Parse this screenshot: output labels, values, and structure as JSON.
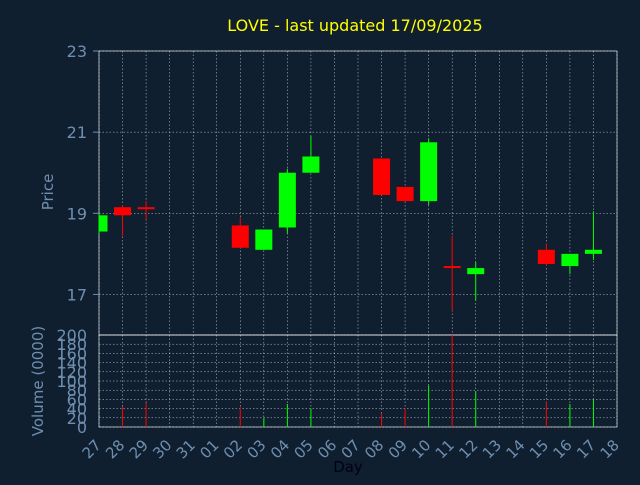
{
  "chart_data": {
    "type": "candlestick",
    "title": "LOVE - last updated 17/09/2025",
    "ylabel": "Price",
    "volume_ylabel": "Volume (0000)",
    "xlabel": "Day",
    "ylim": [
      16,
      23
    ],
    "yticks": [
      "17",
      "19",
      "21",
      "23"
    ],
    "volume_ylim": [
      0,
      200
    ],
    "volume_yticks": [
      "0",
      "20",
      "40",
      "60",
      "80",
      "100",
      "120",
      "140",
      "160",
      "180",
      "200"
    ],
    "x_ticks": [
      "27",
      "28",
      "29",
      "30",
      "31",
      "01",
      "02",
      "03",
      "04",
      "05",
      "06",
      "07",
      "08",
      "09",
      "10",
      "11",
      "12",
      "13",
      "14",
      "15",
      "16",
      "17",
      "18"
    ],
    "colors": {
      "up": "#00ff00",
      "down": "#ff0000",
      "background": "#0f1f30",
      "title": "#ffff00",
      "axis_text": "#6f8fb0",
      "grid": "#ffffff"
    },
    "candles": [
      {
        "day": "27",
        "open": 18.55,
        "close": 18.95,
        "high": 19.0,
        "low": 18.5
      },
      {
        "day": "28",
        "open": 19.15,
        "close": 18.95,
        "high": 19.2,
        "low": 18.45
      },
      {
        "day": "29",
        "open": 19.15,
        "close": 19.1,
        "high": 19.3,
        "low": 18.85
      },
      {
        "day": "02",
        "open": 18.7,
        "close": 18.15,
        "high": 18.9,
        "low": 18.15
      },
      {
        "day": "03",
        "open": 18.1,
        "close": 18.6,
        "high": 18.6,
        "low": 18.1
      },
      {
        "day": "04",
        "open": 18.65,
        "close": 20.0,
        "high": 20.1,
        "low": 18.5
      },
      {
        "day": "05",
        "open": 20.0,
        "close": 20.4,
        "high": 20.9,
        "low": 20.0
      },
      {
        "day": "08",
        "open": 20.35,
        "close": 19.45,
        "high": 20.35,
        "low": 19.45
      },
      {
        "day": "09",
        "open": 19.65,
        "close": 19.3,
        "high": 19.65,
        "low": 19.3
      },
      {
        "day": "10",
        "open": 19.3,
        "close": 20.75,
        "high": 20.85,
        "low": 19.2
      },
      {
        "day": "11",
        "open": 17.7,
        "close": 17.65,
        "high": 18.45,
        "low": 16.6
      },
      {
        "day": "12",
        "open": 17.5,
        "close": 17.65,
        "high": 17.8,
        "low": 16.85
      },
      {
        "day": "15",
        "open": 18.1,
        "close": 17.75,
        "high": 18.25,
        "low": 17.7
      },
      {
        "day": "16",
        "open": 17.7,
        "close": 18.0,
        "high": 18.0,
        "low": 17.5
      },
      {
        "day": "17",
        "open": 18.0,
        "close": 18.1,
        "high": 19.05,
        "low": 17.85
      }
    ],
    "volume": [
      {
        "day": "27",
        "value": 0,
        "dir": "up"
      },
      {
        "day": "28",
        "value": 45,
        "dir": "down"
      },
      {
        "day": "29",
        "value": 52,
        "dir": "down"
      },
      {
        "day": "02",
        "value": 43,
        "dir": "down"
      },
      {
        "day": "03",
        "value": 20,
        "dir": "up"
      },
      {
        "day": "04",
        "value": 50,
        "dir": "up"
      },
      {
        "day": "05",
        "value": 40,
        "dir": "up"
      },
      {
        "day": "08",
        "value": 30,
        "dir": "down"
      },
      {
        "day": "09",
        "value": 40,
        "dir": "down"
      },
      {
        "day": "10",
        "value": 90,
        "dir": "up"
      },
      {
        "day": "11",
        "value": 200,
        "dir": "down"
      },
      {
        "day": "12",
        "value": 78,
        "dir": "up"
      },
      {
        "day": "15",
        "value": 55,
        "dir": "down"
      },
      {
        "day": "16",
        "value": 50,
        "dir": "up"
      },
      {
        "day": "17",
        "value": 60,
        "dir": "up"
      }
    ]
  }
}
